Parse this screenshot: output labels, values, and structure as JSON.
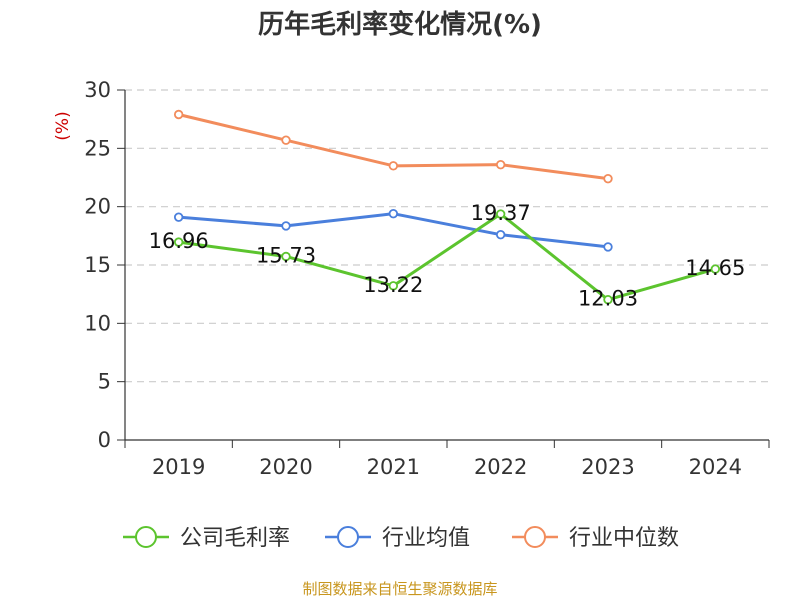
{
  "chart_data": {
    "type": "line",
    "title": "历年毛利率变化情况(%)",
    "y_unit": "(%)",
    "categories": [
      "2019",
      "2020",
      "2021",
      "2022",
      "2023",
      "2024"
    ],
    "ylim": [
      0,
      30
    ],
    "y_ticks": [
      "0",
      "5",
      "10",
      "15",
      "20",
      "25",
      "30"
    ],
    "grid": true,
    "legend_position": "bottom",
    "series": [
      {
        "name": "公司毛利率",
        "color": "#5cc42e",
        "values": [
          16.96,
          15.73,
          13.22,
          19.37,
          12.03,
          14.65
        ],
        "labels": [
          "16.96",
          "15.73",
          "13.22",
          "19.37",
          "12.03",
          "14.65"
        ]
      },
      {
        "name": "行业均值",
        "color": "#4a7fdc",
        "values": [
          19.1,
          18.35,
          19.4,
          17.6,
          16.55,
          null
        ]
      },
      {
        "name": "行业中位数",
        "color": "#f28c5c",
        "values": [
          27.9,
          25.7,
          23.5,
          23.6,
          22.4,
          null
        ]
      }
    ]
  },
  "footer": {
    "source": "制图数据来自恒生聚源数据库"
  }
}
